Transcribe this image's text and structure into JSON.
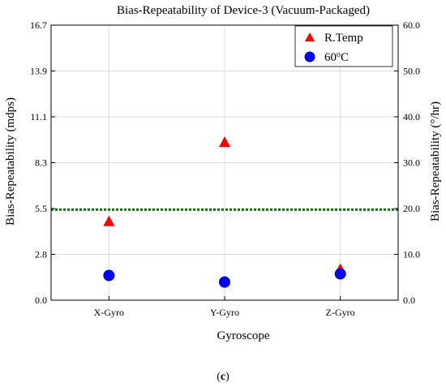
{
  "chart_data": {
    "type": "scatter",
    "title": "Bias-Repeatability of Device-3 (Vacuum-Packaged)",
    "xlabel": "Gyroscope",
    "ylabel_left": "Bias-Repeatability (mdps)",
    "ylabel_right": "Bias-Repeatability (°/hr)",
    "categories": [
      "X-Gyro",
      "Y-Gyro",
      "Z-Gyro"
    ],
    "ylim_left": [
      0,
      16.7
    ],
    "ylim_right": [
      0,
      60
    ],
    "yticks_left": [
      "0.0",
      "2.8",
      "5.5",
      "8.3",
      "11.1",
      "13.9",
      "16.7"
    ],
    "yticks_right": [
      "0.0",
      "10.0",
      "20.0",
      "30.0",
      "40.0",
      "50.0",
      "60.0"
    ],
    "grid": true,
    "legend_position": "top-right",
    "series": [
      {
        "name": "R.Temp",
        "marker": "triangle",
        "color": "#ff0000",
        "values": [
          4.75,
          9.55,
          1.85
        ]
      },
      {
        "name": "60oC",
        "marker": "circle",
        "color": "#0000ff",
        "values": [
          1.5,
          1.1,
          1.6
        ]
      }
    ],
    "reference_line": {
      "value": 5.5,
      "color": "#008000",
      "style": "dotted"
    },
    "panel_label": "(c)"
  }
}
